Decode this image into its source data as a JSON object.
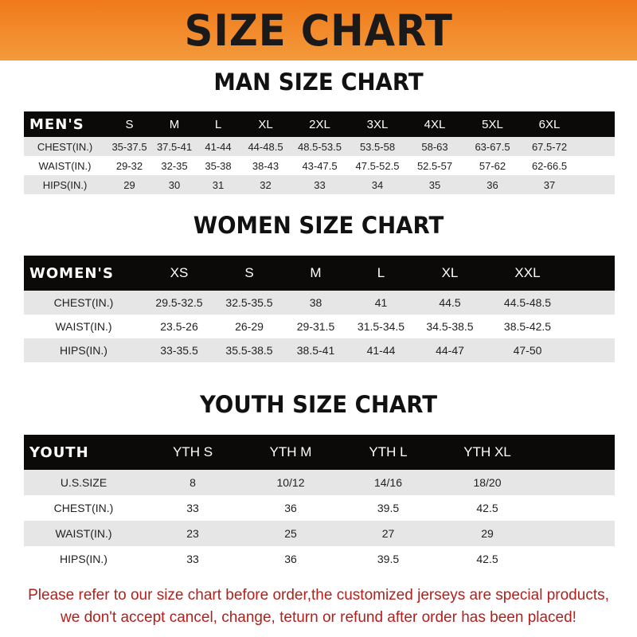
{
  "banner": {
    "title": "SIZE CHART",
    "color": "#f07a1a"
  },
  "men": {
    "title": "MAN SIZE CHART",
    "header": [
      "MEN'S",
      "S",
      "M",
      "L",
      "XL",
      "2XL",
      "3XL",
      "4XL",
      "5XL",
      "6XL"
    ],
    "rows": [
      [
        "CHEST(IN.)",
        "35-37.5",
        "37.5-41",
        "41-44",
        "44-48.5",
        "48.5-53.5",
        "53.5-58",
        "58-63",
        "63-67.5",
        "67.5-72"
      ],
      [
        "WAIST(IN.)",
        "29-32",
        "32-35",
        "35-38",
        "38-43",
        "43-47.5",
        "47.5-52.5",
        "52.5-57",
        "57-62",
        "62-66.5"
      ],
      [
        "HIPS(IN.)",
        "29",
        "30",
        "31",
        "32",
        "33",
        "34",
        "35",
        "36",
        "37"
      ]
    ]
  },
  "women": {
    "title": "WOMEN SIZE CHART",
    "header": [
      "WOMEN'S",
      "XS",
      "S",
      "M",
      "L",
      "XL",
      "XXL"
    ],
    "rows": [
      [
        "CHEST(IN.)",
        "29.5-32.5",
        "32.5-35.5",
        "38",
        "41",
        "44.5",
        "44.5-48.5"
      ],
      [
        "WAIST(IN.)",
        "23.5-26",
        "26-29",
        "29-31.5",
        "31.5-34.5",
        "34.5-38.5",
        "38.5-42.5"
      ],
      [
        "HIPS(IN.)",
        "33-35.5",
        "35.5-38.5",
        "38.5-41",
        "41-44",
        "44-47",
        "47-50"
      ]
    ]
  },
  "youth": {
    "title": "YOUTH SIZE CHART",
    "header": [
      "YOUTH",
      "YTH S",
      "YTH M",
      "YTH L",
      "YTH XL"
    ],
    "rows": [
      [
        "U.S.SIZE",
        "8",
        "10/12",
        "14/16",
        "18/20"
      ],
      [
        "CHEST(IN.)",
        "33",
        "36",
        "39.5",
        "42.5"
      ],
      [
        "WAIST(IN.)",
        "23",
        "25",
        "27",
        "29"
      ],
      [
        "HIPS(IN.)",
        "33",
        "36",
        "39.5",
        "42.5"
      ]
    ]
  },
  "note": {
    "line1": "Please refer to our size chart before order,the customized jerseys are special products,",
    "line2": "we don't accept cancel, change, teturn or refund after order has been placed!",
    "color": "#b3201c"
  }
}
